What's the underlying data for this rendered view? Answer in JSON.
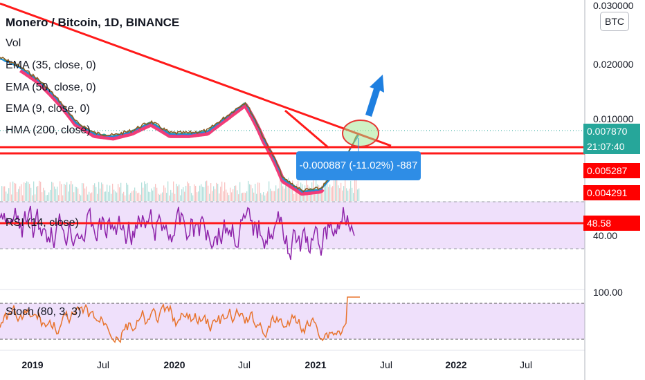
{
  "header": {
    "symbol_title": "Monero / Bitcoin, 1D, BINANCE",
    "indicators": [
      "Vol",
      "EMA (35, close, 0)",
      "EMA (50, close, 0)",
      "EMA (9, close, 0)",
      "HMA (200, close)"
    ]
  },
  "currency_button": "BTC",
  "measure_label": "-0.000887 (-11.02%) -887",
  "price_axis": {
    "ticks": [
      "0.030000",
      "0.020000",
      "0.010000"
    ],
    "last_price": "0.007870",
    "countdown": "21:07:40",
    "level_1": "0.005287",
    "level_2": "0.004291",
    "colors": {
      "last_price": "#26a69a",
      "level": "#ff0000",
      "trendline": "#ff1a1a",
      "measure": "#2e8de6"
    }
  },
  "rsi_pane": {
    "label": "RSI (14, close)",
    "level_tag": "48.58",
    "tick": "40.00"
  },
  "stoch_pane": {
    "label": "Stoch (80, 3, 3)",
    "tick": "100.00"
  },
  "time_axis": {
    "ticks": [
      "2019",
      "Jul",
      "2020",
      "Jul",
      "2021",
      "Jul",
      "2022",
      "Jul"
    ]
  },
  "chart_data": {
    "type": "line",
    "title": "Monero / Bitcoin, 1D, BINANCE",
    "x": [
      "2018-11",
      "2019-01",
      "2019-03",
      "2019-05",
      "2019-07",
      "2019-09",
      "2019-11",
      "2020-01",
      "2020-03",
      "2020-05",
      "2020-07",
      "2020-09",
      "2020-10",
      "2020-11",
      "2020-12",
      "2021-01",
      "2021-02",
      "2021-03",
      "2021-04",
      "2021-05"
    ],
    "series": [
      {
        "values": [
          0.0175,
          0.016,
          0.014,
          0.0115,
          0.009,
          0.008,
          0.0078,
          0.0082,
          0.009,
          0.008,
          0.008,
          0.0082,
          0.0095,
          0.011,
          0.0075,
          0.005,
          0.0044,
          0.0045,
          0.0055,
          0.0079
        ]
      }
    ],
    "ylim": [
      0.004,
      0.03
    ],
    "yticks": [
      0.01,
      0.02,
      0.03
    ],
    "annotations": [
      "Trendline",
      "Support lines",
      "Up arrow",
      "Ellipse"
    ]
  }
}
